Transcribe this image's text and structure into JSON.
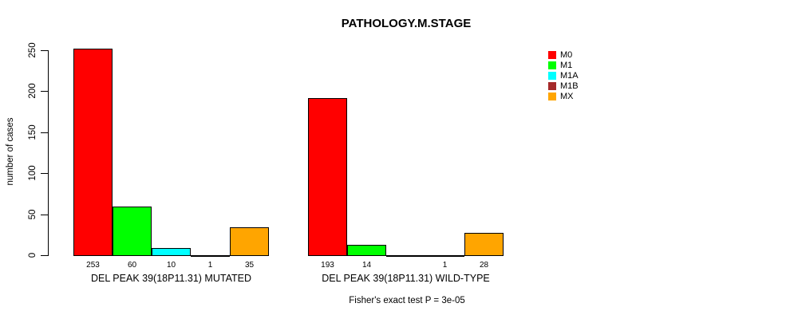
{
  "title": "PATHOLOGY.M.STAGE",
  "y_axis": {
    "label": "number of cases",
    "ticks": [
      0,
      50,
      100,
      150,
      200,
      250
    ]
  },
  "legend": {
    "items": [
      {
        "label": "M0",
        "color": "#FF0000"
      },
      {
        "label": "M1",
        "color": "#00FF00"
      },
      {
        "label": "M1A",
        "color": "#00FFFF"
      },
      {
        "label": "M1B",
        "color": "#A52A2A"
      },
      {
        "label": "MX",
        "color": "#FFA500"
      }
    ]
  },
  "footer": "Fisher's exact test P = 3e-05",
  "chart_data": {
    "type": "bar",
    "title": "PATHOLOGY.M.STAGE",
    "ylabel": "number of cases",
    "ylim": [
      0,
      250
    ],
    "yticks": [
      0,
      50,
      100,
      150,
      200,
      250
    ],
    "grid": false,
    "legend_position": "right",
    "categories": [
      "M0",
      "M1",
      "M1A",
      "M1B",
      "MX"
    ],
    "colors": [
      "#FF0000",
      "#00FF00",
      "#00FFFF",
      "#A52A2A",
      "#FFA500"
    ],
    "groups": [
      {
        "key": "mutated",
        "label": "DEL PEAK 39(18P11.31) MUTATED",
        "values": [
          253,
          60,
          10,
          1,
          35
        ],
        "value_labels": [
          "253",
          "60",
          "10",
          "1",
          "35"
        ]
      },
      {
        "key": "wild-type",
        "label": "DEL PEAK 39(18P11.31) WILD-TYPE",
        "values": [
          193,
          14,
          0,
          1,
          28
        ],
        "value_labels": [
          "193",
          "14",
          "",
          "1",
          "28"
        ]
      }
    ],
    "annotation": "Fisher's exact test P = 3e-05"
  }
}
